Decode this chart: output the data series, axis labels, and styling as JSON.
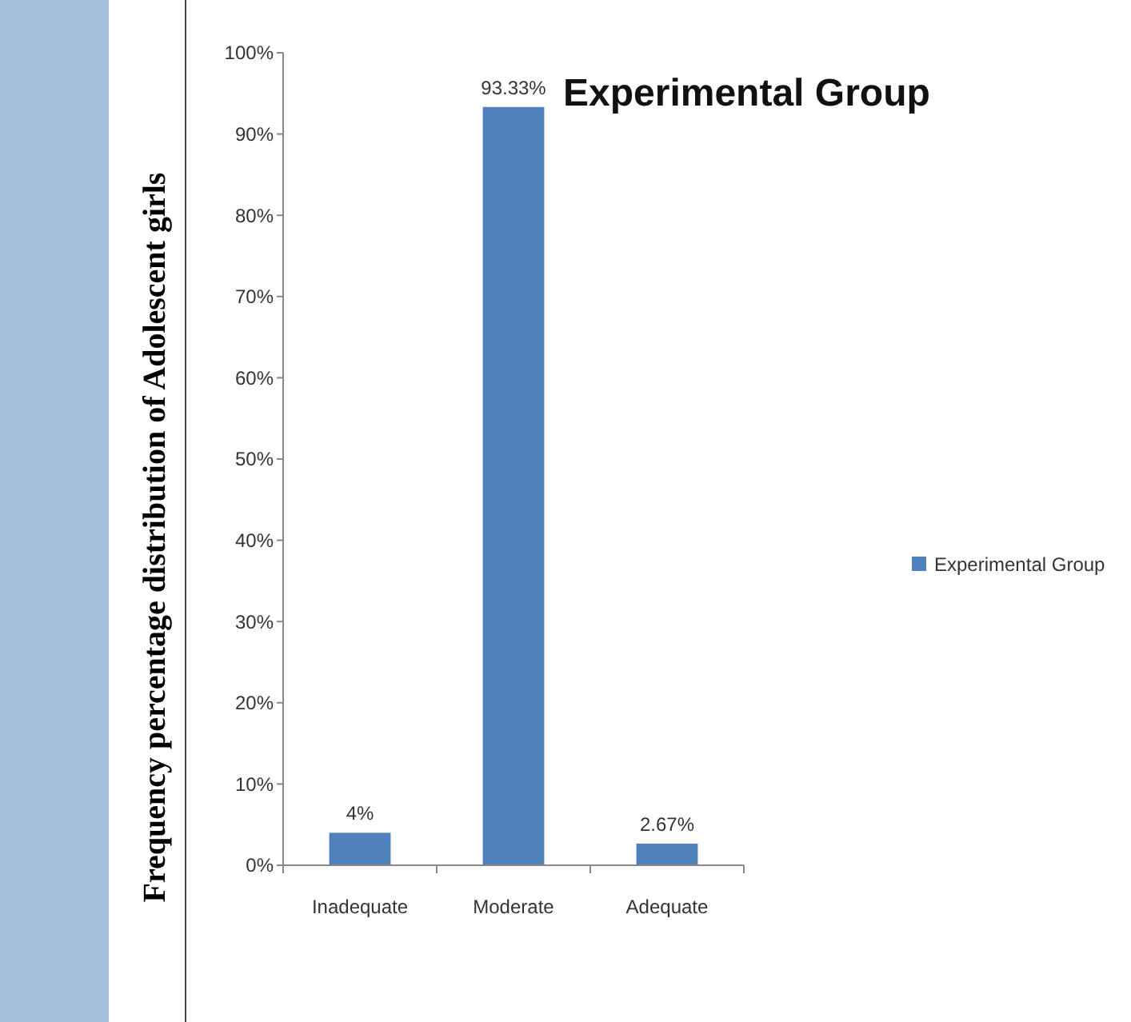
{
  "chart_data": {
    "type": "bar",
    "title": "Experimental Group",
    "ylabel": "Frequency percentage distribution of Adolescent girls",
    "categories": [
      "Inadequate",
      "Moderate",
      "Adequate"
    ],
    "series": [
      {
        "name": "Experimental Group",
        "color": "#4f81bd",
        "values": [
          4,
          93.33,
          2.67
        ],
        "value_labels": [
          "4%",
          "93.33%",
          "2.67%"
        ]
      }
    ],
    "ylim": [
      0,
      100
    ],
    "yticks": [
      {
        "value": 0,
        "label": "0%"
      },
      {
        "value": 10,
        "label": "10%"
      },
      {
        "value": 20,
        "label": "20%"
      },
      {
        "value": 30,
        "label": "30%"
      },
      {
        "value": 40,
        "label": "40%"
      },
      {
        "value": 50,
        "label": "50%"
      },
      {
        "value": 60,
        "label": "60%"
      },
      {
        "value": 70,
        "label": "70%"
      },
      {
        "value": 80,
        "label": "80%"
      },
      {
        "value": 90,
        "label": "90%"
      },
      {
        "value": 100,
        "label": "100%"
      }
    ],
    "grid": false,
    "legend": "right"
  }
}
